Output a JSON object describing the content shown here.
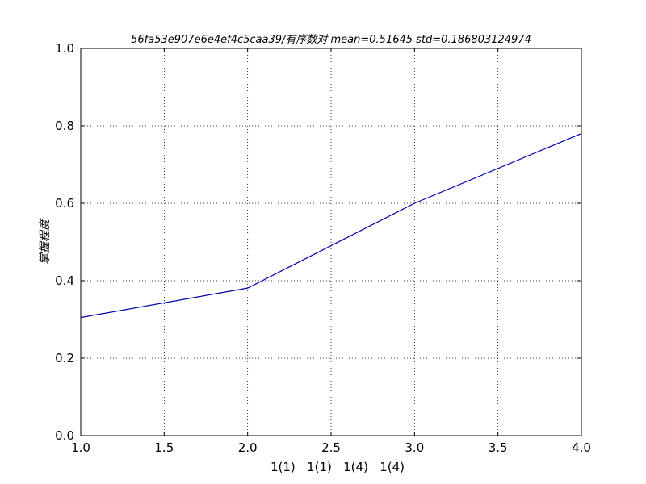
{
  "chart_data": {
    "type": "line",
    "title": "56fa53e907e6e4ef4c5caa39/有序数对 mean=0.51645 std=0.186803124974",
    "xlabel": "1(1)   1(1)   1(4)   1(4)",
    "ylabel": "掌握程度",
    "xlim": [
      1.0,
      4.0
    ],
    "ylim": [
      0.0,
      1.0
    ],
    "x_ticks": [
      "1.0",
      "1.5",
      "2.0",
      "2.5",
      "3.0",
      "3.5",
      "4.0"
    ],
    "y_ticks": [
      "0.0",
      "0.2",
      "0.4",
      "0.6",
      "0.8",
      "1.0"
    ],
    "grid": true,
    "series": [
      {
        "color": "#0000aa",
        "x": [
          1,
          2,
          3,
          4
        ],
        "y": [
          0.305,
          0.381,
          0.6,
          0.78
        ]
      }
    ]
  }
}
